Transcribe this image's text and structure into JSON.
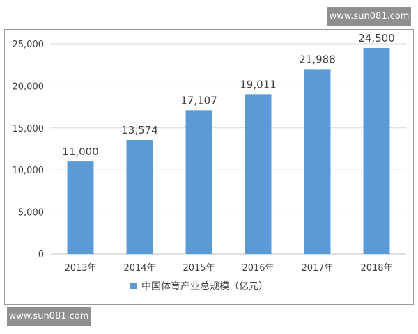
{
  "watermarks": {
    "top": "www.sun081.com",
    "bottom": "www.sun081.com"
  },
  "chart_data": {
    "type": "bar",
    "categories": [
      "2013年",
      "2014年",
      "2015年",
      "2016年",
      "2017年",
      "2018年"
    ],
    "series": [
      {
        "name": "中国体育产业总规模（亿元）",
        "values": [
          11000,
          13574,
          17107,
          19011,
          21988,
          24500
        ],
        "color": "#5b9bd5"
      }
    ],
    "data_labels": [
      "11,000",
      "13,574",
      "17,107",
      "19,011",
      "21,988",
      "24,500"
    ],
    "y_ticks": [
      0,
      5000,
      10000,
      15000,
      20000,
      25000
    ],
    "y_tick_labels": [
      "0",
      "5,000",
      "10,000",
      "15,000",
      "20,000",
      "25,000"
    ],
    "ylim": [
      0,
      25000
    ],
    "grid": true,
    "legend_position": "bottom",
    "gridline_color": "#d9d9d9",
    "text_color": "#404040"
  }
}
